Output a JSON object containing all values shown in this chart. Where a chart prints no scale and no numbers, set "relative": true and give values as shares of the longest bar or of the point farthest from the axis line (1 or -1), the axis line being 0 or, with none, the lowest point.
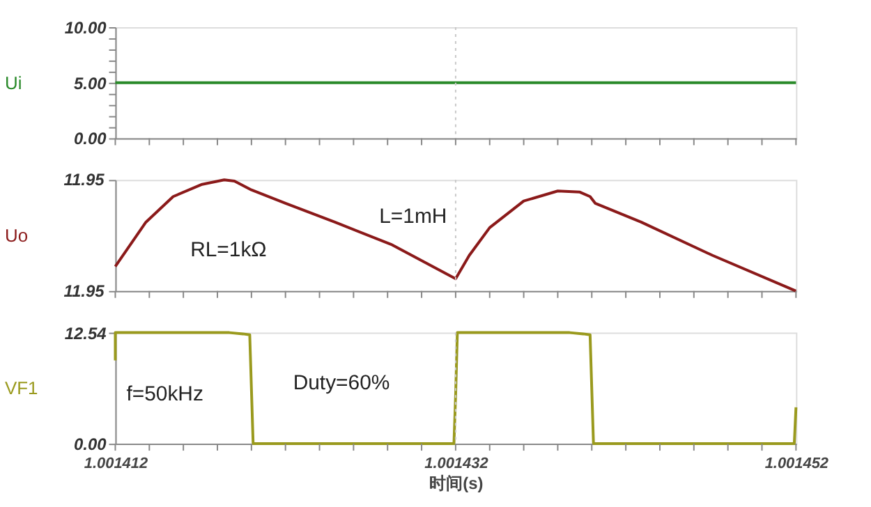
{
  "chart_data": [
    {
      "type": "line",
      "ylabel": "Ui",
      "xlim": [
        1.001412,
        1.001452
      ],
      "ylim": [
        0,
        10
      ],
      "xticks": [
        {
          "value": 1.001412,
          "label": null
        },
        {
          "value": 1.001414,
          "label": null
        },
        {
          "value": 1.001416,
          "label": null
        },
        {
          "value": 1.001418,
          "label": null
        },
        {
          "value": 1.00142,
          "label": null
        },
        {
          "value": 1.001422,
          "label": null
        },
        {
          "value": 1.001424,
          "label": null
        },
        {
          "value": 1.001426,
          "label": null
        },
        {
          "value": 1.001428,
          "label": null
        },
        {
          "value": 1.00143,
          "label": null
        },
        {
          "value": 1.001432,
          "label": null
        },
        {
          "value": 1.001434,
          "label": null
        },
        {
          "value": 1.001436,
          "label": null
        },
        {
          "value": 1.001438,
          "label": null
        },
        {
          "value": 1.00144,
          "label": null
        },
        {
          "value": 1.001442,
          "label": null
        },
        {
          "value": 1.001444,
          "label": null
        },
        {
          "value": 1.001446,
          "label": null
        },
        {
          "value": 1.001448,
          "label": null
        },
        {
          "value": 1.00145,
          "label": null
        },
        {
          "value": 1.001452,
          "label": null
        }
      ],
      "yticks": [
        {
          "value": 0,
          "label": "0.00"
        },
        {
          "value": 1,
          "label": null
        },
        {
          "value": 2,
          "label": null
        },
        {
          "value": 3,
          "label": null
        },
        {
          "value": 4,
          "label": null
        },
        {
          "value": 5,
          "label": "5.00"
        },
        {
          "value": 6,
          "label": null
        },
        {
          "value": 7,
          "label": null
        },
        {
          "value": 8,
          "label": null
        },
        {
          "value": 9,
          "label": null
        },
        {
          "value": 10,
          "label": "10.00"
        }
      ],
      "tick_labels": "y",
      "grid": false,
      "ref_lines": [
        {
          "axis": "x",
          "value": 1.001432,
          "line_style": "dotted",
          "color": "#c8c8c8"
        }
      ],
      "series": [
        {
          "color": "#2a8a2a",
          "x": [
            1.001412,
            1.001452
          ],
          "values": [
            5,
            5
          ]
        }
      ]
    },
    {
      "type": "line",
      "ylabel": "Uo",
      "relative": true,
      "xlim": [
        1.001412,
        1.001452
      ],
      "xticks": [
        {
          "value": 1.001412,
          "label": null
        },
        {
          "value": 1.001414,
          "label": null
        },
        {
          "value": 1.001416,
          "label": null
        },
        {
          "value": 1.001418,
          "label": null
        },
        {
          "value": 1.00142,
          "label": null
        },
        {
          "value": 1.001422,
          "label": null
        },
        {
          "value": 1.001424,
          "label": null
        },
        {
          "value": 1.001426,
          "label": null
        },
        {
          "value": 1.001428,
          "label": null
        },
        {
          "value": 1.00143,
          "label": null
        },
        {
          "value": 1.001432,
          "label": null
        },
        {
          "value": 1.001434,
          "label": null
        },
        {
          "value": 1.001436,
          "label": null
        },
        {
          "value": 1.001438,
          "label": null
        },
        {
          "value": 1.00144,
          "label": null
        },
        {
          "value": 1.001442,
          "label": null
        },
        {
          "value": 1.001444,
          "label": null
        },
        {
          "value": 1.001446,
          "label": null
        },
        {
          "value": 1.001448,
          "label": null
        },
        {
          "value": 1.00145,
          "label": null
        },
        {
          "value": 1.001452,
          "label": null
        }
      ],
      "tick_labels": "y",
      "grid": false,
      "annotations": [
        "11.95",
        "11.95",
        "RL=1kΩ",
        "L=1mH"
      ],
      "ref_lines": [
        {
          "axis": "x",
          "value": 1.001432,
          "line_style": "dotted",
          "color": "#c8c8c8"
        }
      ],
      "series": [
        {
          "color": "#8b1a1a",
          "x": [
            1.001412,
            1.0014138,
            1.0014154,
            1.0014171,
            1.0014184,
            1.001419,
            1.00142,
            1.001422,
            1.0014249,
            1.0014282,
            1.001432,
            1.0014328,
            1.001434,
            1.001436,
            1.001438,
            1.0014393,
            1.0014399,
            1.0014402,
            1.0014429,
            1.0014471,
            1.001452
          ],
          "values": [
            0.22,
            0.62,
            0.85,
            0.96,
            1,
            0.99,
            0.91,
            0.79,
            0.62,
            0.42,
            0.11,
            0.32,
            0.57,
            0.81,
            0.9,
            0.89,
            0.85,
            0.79,
            0.62,
            0.32,
            0
          ]
        }
      ]
    },
    {
      "type": "line",
      "ylabel": "VF1",
      "xlabel": "时间(s)",
      "xlim": [
        1.001412,
        1.001452
      ],
      "ylim": [
        0,
        12.54
      ],
      "xticks": [
        {
          "value": 1.001412,
          "label": "1.001412"
        },
        {
          "value": 1.001414,
          "label": null
        },
        {
          "value": 1.001416,
          "label": null
        },
        {
          "value": 1.001418,
          "label": null
        },
        {
          "value": 1.00142,
          "label": null
        },
        {
          "value": 1.001422,
          "label": null
        },
        {
          "value": 1.001424,
          "label": null
        },
        {
          "value": 1.001426,
          "label": null
        },
        {
          "value": 1.001428,
          "label": null
        },
        {
          "value": 1.00143,
          "label": null
        },
        {
          "value": 1.001432,
          "label": "1.001432"
        },
        {
          "value": 1.001434,
          "label": null
        },
        {
          "value": 1.001436,
          "label": null
        },
        {
          "value": 1.001438,
          "label": null
        },
        {
          "value": 1.00144,
          "label": null
        },
        {
          "value": 1.001442,
          "label": null
        },
        {
          "value": 1.001444,
          "label": null
        },
        {
          "value": 1.001446,
          "label": null
        },
        {
          "value": 1.001448,
          "label": null
        },
        {
          "value": 1.00145,
          "label": null
        },
        {
          "value": 1.001452,
          "label": "1.001452"
        }
      ],
      "yticks": [
        {
          "value": 0,
          "label": "0.00"
        },
        {
          "value": 12.54,
          "label": "12.54"
        }
      ],
      "grid": false,
      "annotations": [
        "f=50kHz",
        "Duty=60%"
      ],
      "ref_lines": [
        {
          "axis": "x",
          "value": 1.001432,
          "line_style": "dotted",
          "color": "#c8c8c8"
        }
      ],
      "series": [
        {
          "color": "#9a9a1e",
          "x": [
            1.001412,
            1.001412,
            1.0014187,
            1.0014195,
            1.0014199,
            1.0014201,
            1.0014319,
            1.001432,
            1.0014321,
            1.0014387,
            1.0014395,
            1.0014399,
            1.0014401,
            1.0014519,
            1.001452
          ],
          "values": [
            9.4,
            12.54,
            12.54,
            12.4,
            12.3,
            0,
            0,
            5.5,
            12.54,
            12.54,
            12.4,
            12.3,
            0,
            0,
            4.1
          ]
        }
      ]
    }
  ]
}
